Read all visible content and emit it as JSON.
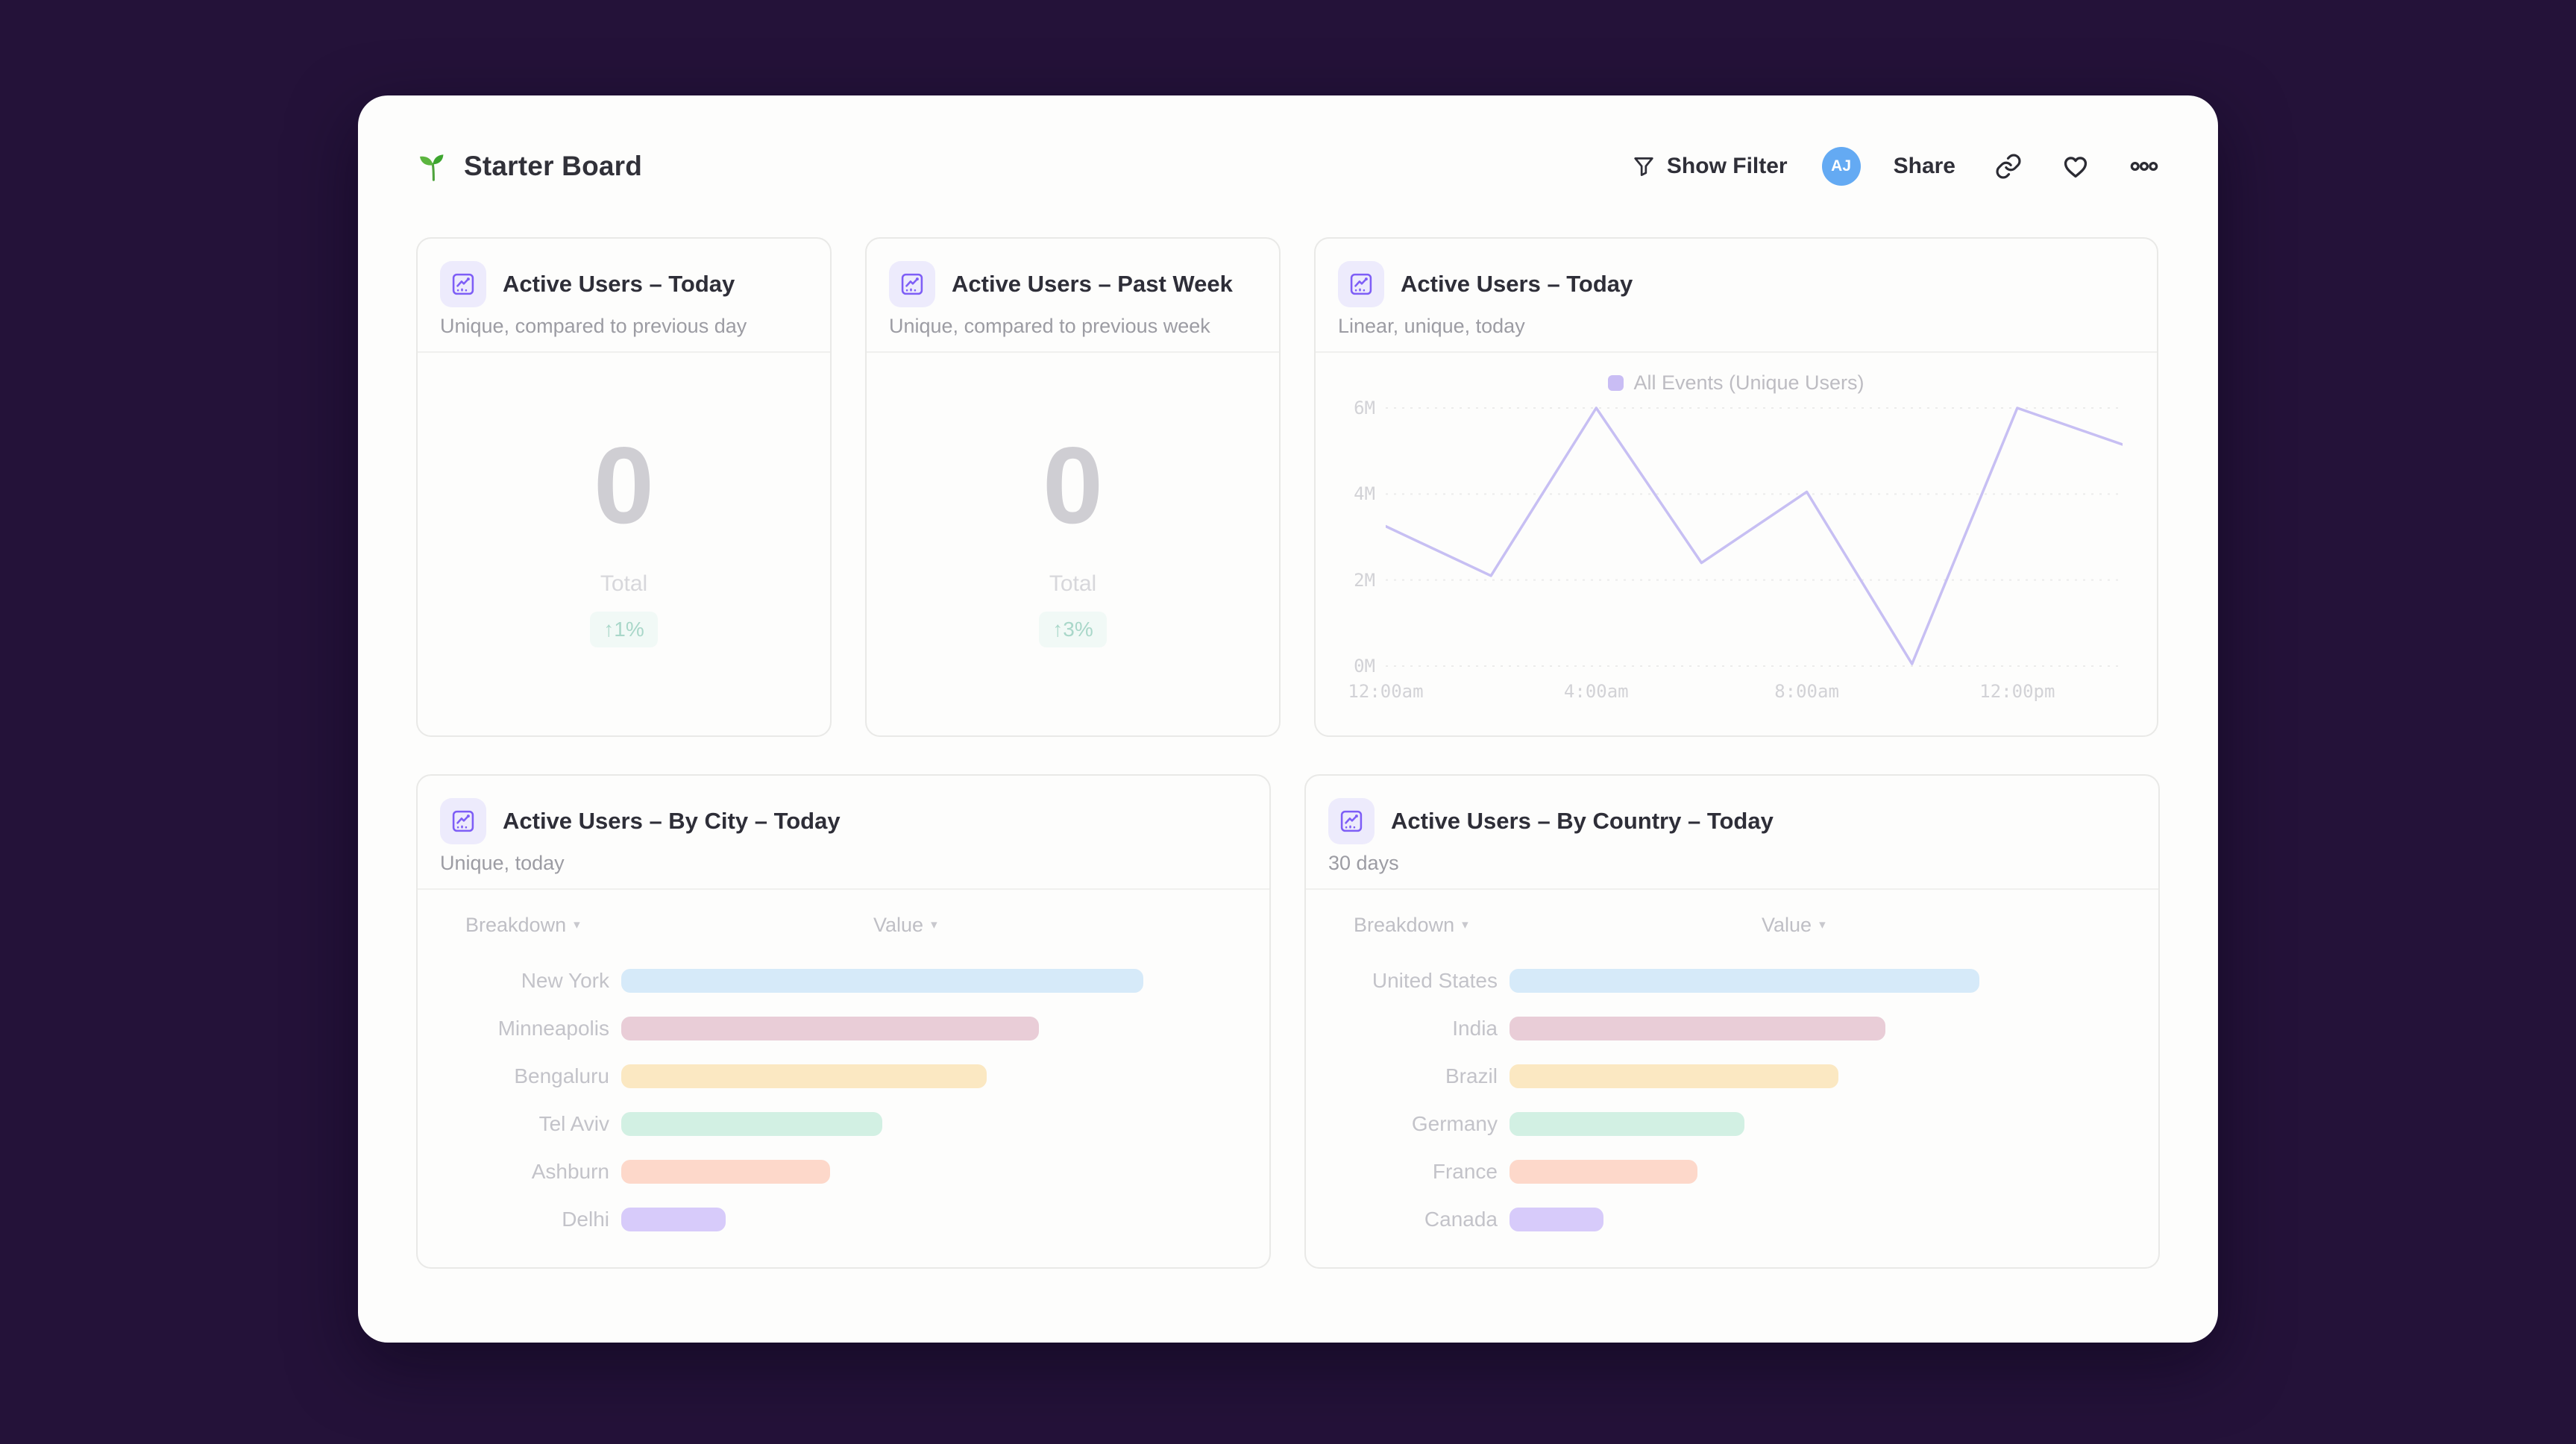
{
  "header": {
    "title": "Starter Board",
    "show_filter_label": "Show Filter",
    "avatar_initials": "AJ",
    "share_label": "Share"
  },
  "panels": {
    "kpi_today": {
      "title": "Active Users – Today",
      "subtitle": "Unique, compared to previous day",
      "value": "0",
      "total_label": "Total",
      "delta": "↑1%"
    },
    "kpi_week": {
      "title": "Active Users – Past Week",
      "subtitle": "Unique, compared to previous week",
      "value": "0",
      "total_label": "Total",
      "delta": "↑3%"
    },
    "line_chart": {
      "title": "Active Users – Today",
      "subtitle": "Linear, unique, today",
      "legend": "All Events (Unique Users)",
      "chart": {
        "type": "line",
        "x_hours": [
          0,
          2,
          4,
          6,
          8,
          10,
          12,
          14
        ],
        "values_millions": [
          3.25,
          2.1,
          6.0,
          2.4,
          4.05,
          0.05,
          6.0,
          5.15
        ],
        "x_domain_hours": [
          0,
          14
        ],
        "ylim_millions": [
          0,
          6
        ],
        "y_ticks": [
          0,
          2,
          4,
          6
        ],
        "y_tick_labels": [
          "0M",
          "2M",
          "4M",
          "6M"
        ],
        "x_tick_hours": [
          0,
          4,
          8,
          12
        ],
        "x_tick_labels": [
          "12:00am",
          "4:00am",
          "8:00am",
          "12:00pm"
        ],
        "line_color": "#c7bff3",
        "grid_color": "#ececeb"
      }
    },
    "by_city": {
      "title": "Active Users – By City – Today",
      "subtitle": "Unique, today",
      "col_breakdown": "Breakdown",
      "col_value": "Value",
      "rows": [
        {
          "label": "New York",
          "value": 100,
          "color": "#d6eaf9"
        },
        {
          "label": "Minneapolis",
          "value": 80,
          "color": "#e9cdd7"
        },
        {
          "label": "Bengaluru",
          "value": 70,
          "color": "#fbe8c2"
        },
        {
          "label": "Tel Aviv",
          "value": 50,
          "color": "#d2f0e3"
        },
        {
          "label": "Ashburn",
          "value": 40,
          "color": "#fdd8ca"
        },
        {
          "label": "Delhi",
          "value": 20,
          "color": "#d7cbfa"
        }
      ]
    },
    "by_country": {
      "title": "Active Users – By Country – Today",
      "subtitle": "30 days",
      "col_breakdown": "Breakdown",
      "col_value": "Value",
      "rows": [
        {
          "label": "United States",
          "value": 100,
          "color": "#d6eaf9"
        },
        {
          "label": "India",
          "value": 80,
          "color": "#e9cdd7"
        },
        {
          "label": "Brazil",
          "value": 70,
          "color": "#fbe8c2"
        },
        {
          "label": "Germany",
          "value": 50,
          "color": "#d2f0e3"
        },
        {
          "label": "France",
          "value": 40,
          "color": "#fdd8ca"
        },
        {
          "label": "Canada",
          "value": 20,
          "color": "#d7cbfa"
        }
      ]
    }
  }
}
